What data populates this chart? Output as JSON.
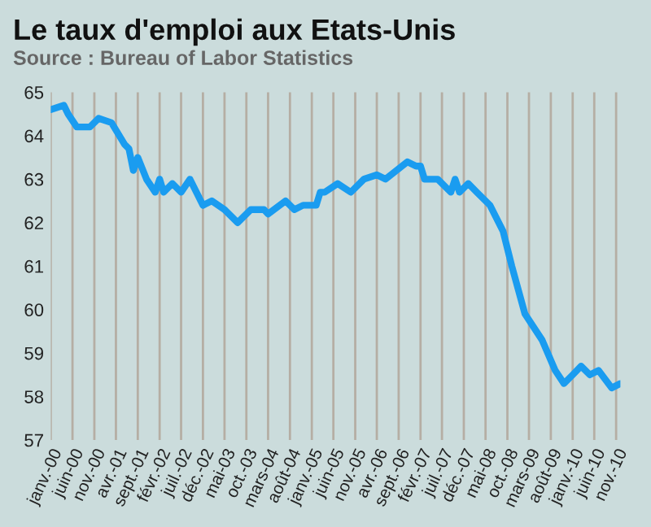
{
  "chart_data": {
    "type": "line",
    "title": "Le taux d'emploi aux Etats-Unis",
    "subtitle": "Source : Bureau of Labor Statistics",
    "x": [
      "2000-01",
      "2000-04",
      "2000-05",
      "2000-07",
      "2000-10",
      "2000-12",
      "2001-03",
      "2001-06",
      "2001-07",
      "2001-08",
      "2001-09",
      "2001-11",
      "2002-01",
      "2002-02",
      "2002-03",
      "2002-05",
      "2002-07",
      "2002-09",
      "2002-12",
      "2003-02",
      "2003-05",
      "2003-08",
      "2003-11",
      "2004-01",
      "2004-02",
      "2004-03",
      "2004-07",
      "2004-09",
      "2004-11",
      "2005-02",
      "2005-03",
      "2005-04",
      "2005-07",
      "2005-10",
      "2006-01",
      "2006-04",
      "2006-06",
      "2006-11",
      "2007-01",
      "2007-02",
      "2007-03",
      "2007-06",
      "2007-09",
      "2007-10",
      "2007-11",
      "2008-01",
      "2008-03",
      "2008-06",
      "2008-09",
      "2008-11",
      "2009-02",
      "2009-06",
      "2009-09",
      "2009-11",
      "2010-01",
      "2010-03",
      "2010-05",
      "2010-07",
      "2010-10",
      "2010-12"
    ],
    "series": [
      {
        "color": "#1a9cf0",
        "values": [
          64.6,
          64.7,
          64.5,
          64.2,
          64.2,
          64.4,
          64.3,
          63.8,
          63.7,
          63.2,
          63.5,
          63.0,
          62.7,
          63.0,
          62.7,
          62.9,
          62.7,
          63.0,
          62.4,
          62.5,
          62.3,
          62.0,
          62.3,
          62.3,
          62.3,
          62.2,
          62.5,
          62.3,
          62.4,
          62.4,
          62.7,
          62.7,
          62.9,
          62.7,
          63.0,
          63.1,
          63.0,
          63.4,
          63.3,
          63.3,
          63.0,
          63.0,
          62.7,
          63.0,
          62.7,
          62.9,
          62.7,
          62.4,
          61.8,
          61.0,
          59.9,
          59.3,
          58.6,
          58.3,
          58.5,
          58.7,
          58.5,
          58.6,
          58.2,
          58.3
        ]
      }
    ],
    "xlim": [
      "2000-01",
      "2010-12"
    ],
    "xticks": [
      {
        "value": "2000-01",
        "label": "janv.-00"
      },
      {
        "value": "2000-06",
        "label": "juin-00"
      },
      {
        "value": "2000-11",
        "label": "nov.-00"
      },
      {
        "value": "2001-04",
        "label": "avr.-01"
      },
      {
        "value": "2001-09",
        "label": "sept.-01"
      },
      {
        "value": "2002-02",
        "label": "févr.-02"
      },
      {
        "value": "2002-07",
        "label": "juil.-02"
      },
      {
        "value": "2002-12",
        "label": "déc.-02"
      },
      {
        "value": "2003-05",
        "label": "mai-03"
      },
      {
        "value": "2003-10",
        "label": "oct.-03"
      },
      {
        "value": "2004-03",
        "label": "mars-04"
      },
      {
        "value": "2004-08",
        "label": "août-04"
      },
      {
        "value": "2005-01",
        "label": "janv.-05"
      },
      {
        "value": "2005-06",
        "label": "juin-05"
      },
      {
        "value": "2005-11",
        "label": "nov.-05"
      },
      {
        "value": "2006-04",
        "label": "avr.-06"
      },
      {
        "value": "2006-09",
        "label": "sept.-06"
      },
      {
        "value": "2007-02",
        "label": "févr.-07"
      },
      {
        "value": "2007-07",
        "label": "juil.-07"
      },
      {
        "value": "2007-12",
        "label": "déc.-07"
      },
      {
        "value": "2008-05",
        "label": "mai-08"
      },
      {
        "value": "2008-10",
        "label": "oct.-08"
      },
      {
        "value": "2009-03",
        "label": "mars-09"
      },
      {
        "value": "2009-08",
        "label": "août-09"
      },
      {
        "value": "2010-01",
        "label": "janv.-10"
      },
      {
        "value": "2010-06",
        "label": "juin-10"
      },
      {
        "value": "2010-11",
        "label": "nov.-10"
      }
    ],
    "ylim": [
      57,
      65
    ],
    "yticks": [
      57,
      58,
      59,
      60,
      61,
      62,
      63,
      64,
      65
    ],
    "grid": "x",
    "legend": false
  }
}
